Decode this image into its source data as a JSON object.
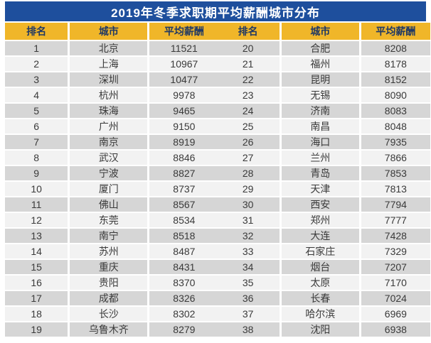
{
  "title": "2019年冬季求职期平均薪酬城市分布",
  "colors": {
    "title_bar_bg": "#1e4f9d",
    "title_text": "#ffffff",
    "header_bg": "#f0b629",
    "header_text": "#1f3864",
    "row_odd_bg": "#d6d6d6",
    "row_even_bg": "#f2f2f2",
    "cell_text": "#3a3a3a"
  },
  "chart_data": {
    "type": "table",
    "title": "2019年冬季求职期平均薪酬城市分布",
    "columns": [
      "排名",
      "城市",
      "平均薪酬",
      "排名",
      "城市",
      "平均薪酬"
    ],
    "rows_left": [
      [
        1,
        "北京",
        11521
      ],
      [
        2,
        "上海",
        10967
      ],
      [
        3,
        "深圳",
        10477
      ],
      [
        4,
        "杭州",
        9978
      ],
      [
        5,
        "珠海",
        9465
      ],
      [
        6,
        "广州",
        9150
      ],
      [
        7,
        "南京",
        8919
      ],
      [
        8,
        "武汉",
        8846
      ],
      [
        9,
        "宁波",
        8827
      ],
      [
        10,
        "厦门",
        8737
      ],
      [
        11,
        "佛山",
        8567
      ],
      [
        12,
        "东莞",
        8534
      ],
      [
        13,
        "南宁",
        8518
      ],
      [
        14,
        "苏州",
        8487
      ],
      [
        15,
        "重庆",
        8431
      ],
      [
        16,
        "贵阳",
        8370
      ],
      [
        17,
        "成都",
        8326
      ],
      [
        18,
        "长沙",
        8302
      ],
      [
        19,
        "乌鲁木齐",
        8279
      ]
    ],
    "rows_right": [
      [
        20,
        "合肥",
        8208
      ],
      [
        21,
        "福州",
        8178
      ],
      [
        22,
        "昆明",
        8152
      ],
      [
        23,
        "无锡",
        8090
      ],
      [
        24,
        "济南",
        8083
      ],
      [
        25,
        "南昌",
        8048
      ],
      [
        26,
        "海口",
        7935
      ],
      [
        27,
        "兰州",
        7866
      ],
      [
        28,
        "青岛",
        7853
      ],
      [
        29,
        "天津",
        7813
      ],
      [
        30,
        "西安",
        7794
      ],
      [
        31,
        "郑州",
        7777
      ],
      [
        32,
        "大连",
        7428
      ],
      [
        33,
        "石家庄",
        7329
      ],
      [
        34,
        "烟台",
        7207
      ],
      [
        35,
        "太原",
        7170
      ],
      [
        36,
        "长春",
        7024
      ],
      [
        37,
        "哈尔滨",
        6969
      ],
      [
        38,
        "沈阳",
        6938
      ]
    ]
  }
}
